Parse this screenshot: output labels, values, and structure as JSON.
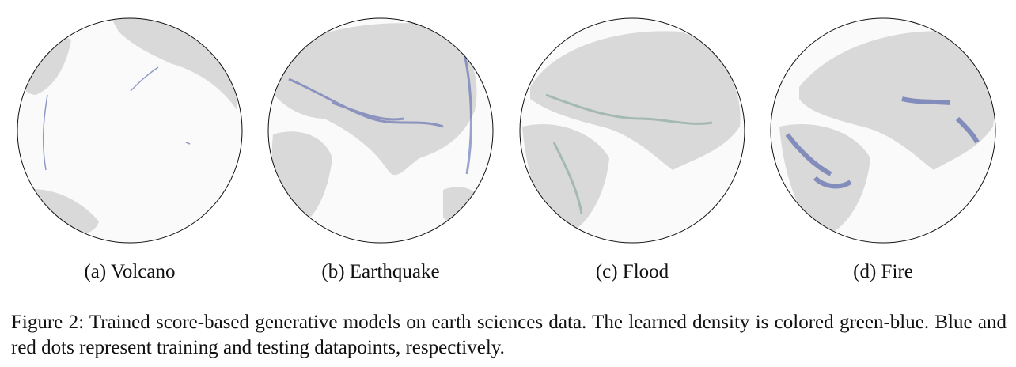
{
  "figure": {
    "panels": [
      {
        "caption": "(a) Volcano"
      },
      {
        "caption": "(b) Earthquake"
      },
      {
        "caption": "(c) Flood"
      },
      {
        "caption": "(d) Fire"
      }
    ],
    "caption": "Figure 2: Trained score-based generative models on earth sciences data. The learned density is colored green-blue. Blue and red dots represent training and testing datapoints, respectively."
  }
}
